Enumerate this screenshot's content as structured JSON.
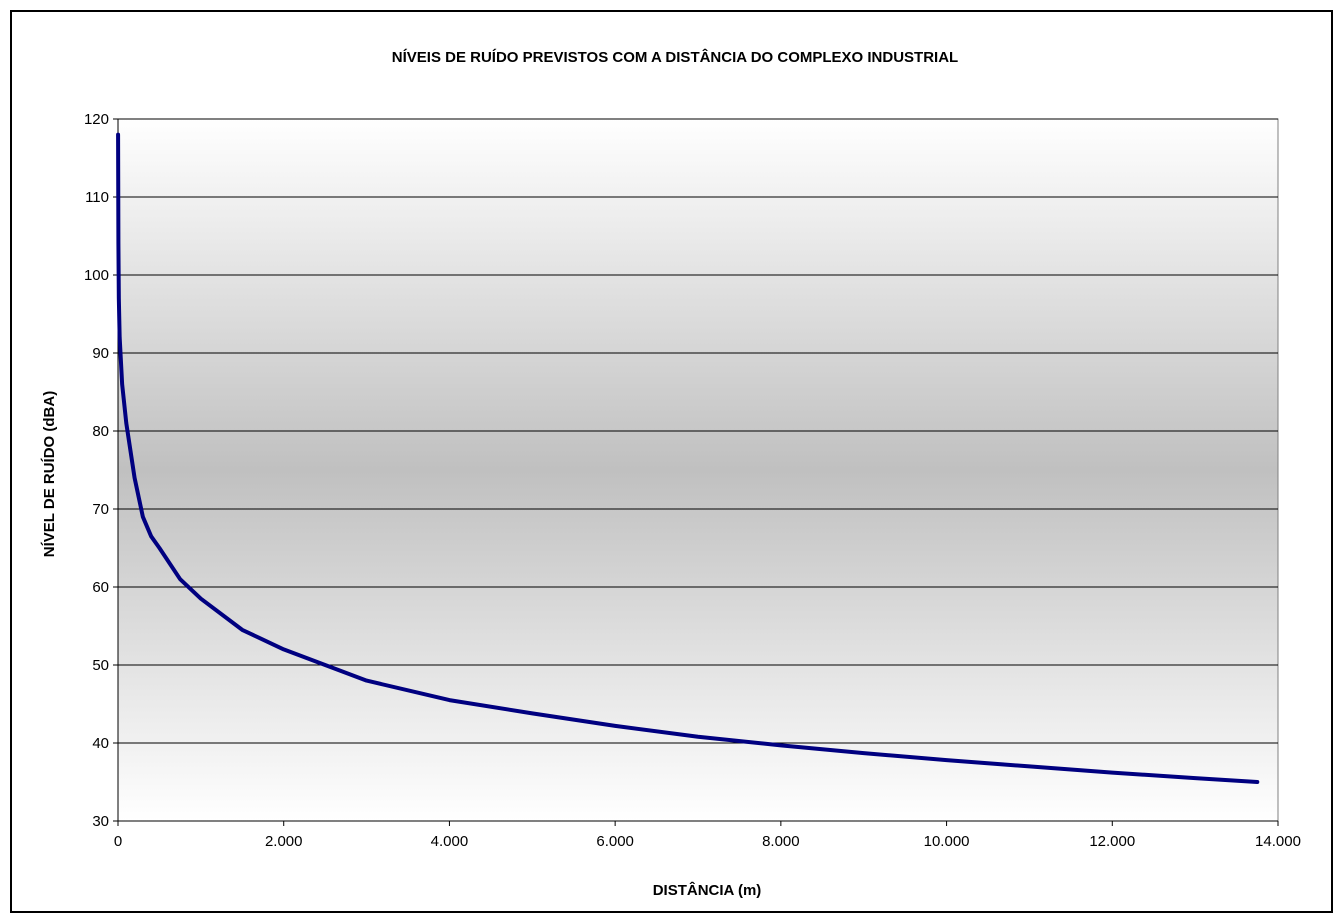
{
  "chart_data": {
    "type": "line",
    "title": "NÍVEIS DE RUÍDO PREVISTOS COM A DISTÂNCIA DO COMPLEXO INDUSTRIAL",
    "xlabel": "DISTÂNCIA (m)",
    "ylabel": "NÍVEL DE RUÍDO (dBA)",
    "xlim": [
      0,
      14000
    ],
    "ylim": [
      30,
      120
    ],
    "x_ticks": [
      0,
      2000,
      4000,
      6000,
      8000,
      10000,
      12000,
      14000
    ],
    "x_tick_labels": [
      "0",
      "2.000",
      "4.000",
      "6.000",
      "8.000",
      "10.000",
      "12.000",
      "14.000"
    ],
    "y_ticks": [
      30,
      40,
      50,
      60,
      70,
      80,
      90,
      100,
      110,
      120
    ],
    "y_tick_labels": [
      "30",
      "40",
      "50",
      "60",
      "70",
      "80",
      "90",
      "100",
      "110",
      "120"
    ],
    "grid": "horizontal",
    "background": "vertical gray gradient",
    "series": [
      {
        "color": "#000080",
        "x": [
          1,
          5,
          10,
          20,
          50,
          100,
          200,
          300,
          400,
          500,
          750,
          1000,
          1500,
          2000,
          2500,
          3000,
          4000,
          5000,
          6000,
          7000,
          8000,
          9000,
          10000,
          11000,
          12000,
          13000,
          13750
        ],
        "y": [
          118,
          104,
          97,
          92,
          86,
          81,
          74,
          69,
          66.5,
          65,
          61,
          58.5,
          54.5,
          52,
          50,
          48,
          45.5,
          43.8,
          42.2,
          40.8,
          39.7,
          38.7,
          37.8,
          37,
          36.2,
          35.5,
          35
        ]
      }
    ]
  }
}
